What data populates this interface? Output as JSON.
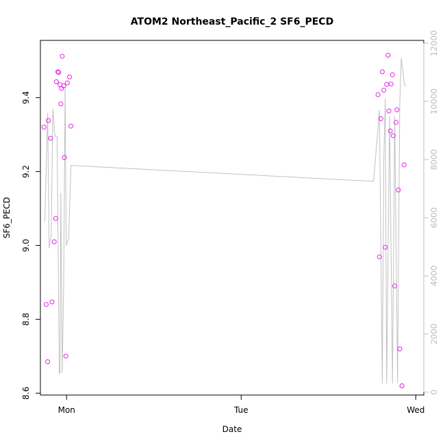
{
  "chart_data": {
    "type": "scatter",
    "title": "ATOM2 Northeast_Pacific_2 SF6_PECD",
    "xlabel": "Date",
    "ylabel": "SF6_PECD",
    "x_ticks": [
      "Mon",
      "Tue",
      "Wed"
    ],
    "x_tick_values": [
      0,
      24,
      48
    ],
    "xlim": [
      -3.6,
      49.1
    ],
    "ylim": [
      8.595,
      9.555
    ],
    "y_ticks": [
      8.6,
      8.8,
      9.0,
      9.2,
      9.4
    ],
    "y_tick_labels": [
      "8.6",
      "8.8",
      "9.0",
      "9.2",
      "9.4"
    ],
    "y2lim": [
      -100,
      12100
    ],
    "y2_ticks": [
      0,
      2000,
      4000,
      6000,
      8000,
      10000,
      12000
    ],
    "y2_tick_labels": [
      "0",
      "2000",
      "4000",
      "6000",
      "8000",
      "10000",
      "12000"
    ],
    "points_color": "#e61ee6",
    "line_color": "#c0c0c0",
    "series": [
      {
        "marker": "circle",
        "points": [
          [
            -3.1,
            9.32
          ],
          [
            -2.8,
            8.84
          ],
          [
            -2.6,
            8.685
          ],
          [
            -2.5,
            9.338
          ],
          [
            -2.2,
            9.29
          ],
          [
            -2.0,
            8.847
          ],
          [
            -1.7,
            9.01
          ],
          [
            -1.5,
            9.073
          ],
          [
            -1.4,
            9.443
          ],
          [
            -1.2,
            9.47
          ],
          [
            -1.1,
            9.468
          ],
          [
            -0.9,
            9.435
          ],
          [
            -0.8,
            9.383
          ],
          [
            -0.7,
            9.425
          ],
          [
            -0.6,
            9.512
          ],
          [
            -0.4,
            9.432
          ],
          [
            -0.3,
            9.238
          ],
          [
            -0.1,
            8.7
          ],
          [
            0.1,
            9.44
          ],
          [
            0.4,
            9.456
          ],
          [
            0.6,
            9.323
          ],
          [
            42.8,
            9.408
          ],
          [
            43.0,
            8.969
          ],
          [
            43.2,
            9.343
          ],
          [
            43.4,
            9.47
          ],
          [
            43.6,
            9.42
          ],
          [
            43.8,
            8.995
          ],
          [
            44.0,
            9.436
          ],
          [
            44.2,
            9.515
          ],
          [
            44.3,
            9.364
          ],
          [
            44.5,
            9.31
          ],
          [
            44.6,
            9.437
          ],
          [
            44.8,
            9.462
          ],
          [
            44.9,
            9.297
          ],
          [
            45.1,
            8.89
          ],
          [
            45.3,
            9.333
          ],
          [
            45.4,
            9.367
          ],
          [
            45.6,
            9.15
          ],
          [
            45.8,
            8.72
          ],
          [
            46.1,
            8.62
          ],
          [
            46.4,
            9.218
          ]
        ]
      },
      {
        "marker": "line",
        "axis": "right",
        "points": [
          [
            -3.0,
            5850
          ],
          [
            -2.6,
            9600
          ],
          [
            -2.4,
            4950
          ],
          [
            -2.1,
            5400
          ],
          [
            -1.9,
            9750
          ],
          [
            -1.6,
            8800
          ],
          [
            -1.3,
            8800
          ],
          [
            -1.0,
            650
          ],
          [
            -0.9,
            650
          ],
          [
            -0.8,
            6850
          ],
          [
            -0.6,
            650
          ],
          [
            -0.4,
            3700
          ],
          [
            -0.2,
            10500
          ],
          [
            -0.05,
            5050
          ],
          [
            0.3,
            5300
          ],
          [
            0.6,
            7800
          ],
          [
            42.2,
            7250
          ],
          [
            43.0,
            9700
          ],
          [
            43.4,
            300
          ],
          [
            43.6,
            8000
          ],
          [
            43.8,
            10100
          ],
          [
            44.0,
            300
          ],
          [
            44.4,
            9500
          ],
          [
            44.8,
            300
          ],
          [
            45.1,
            9500
          ],
          [
            45.5,
            300
          ],
          [
            45.8,
            9900
          ],
          [
            46.0,
            11500
          ],
          [
            46.4,
            10650
          ],
          [
            46.6,
            10500
          ]
        ]
      }
    ],
    "grid": false,
    "legend": "none"
  }
}
